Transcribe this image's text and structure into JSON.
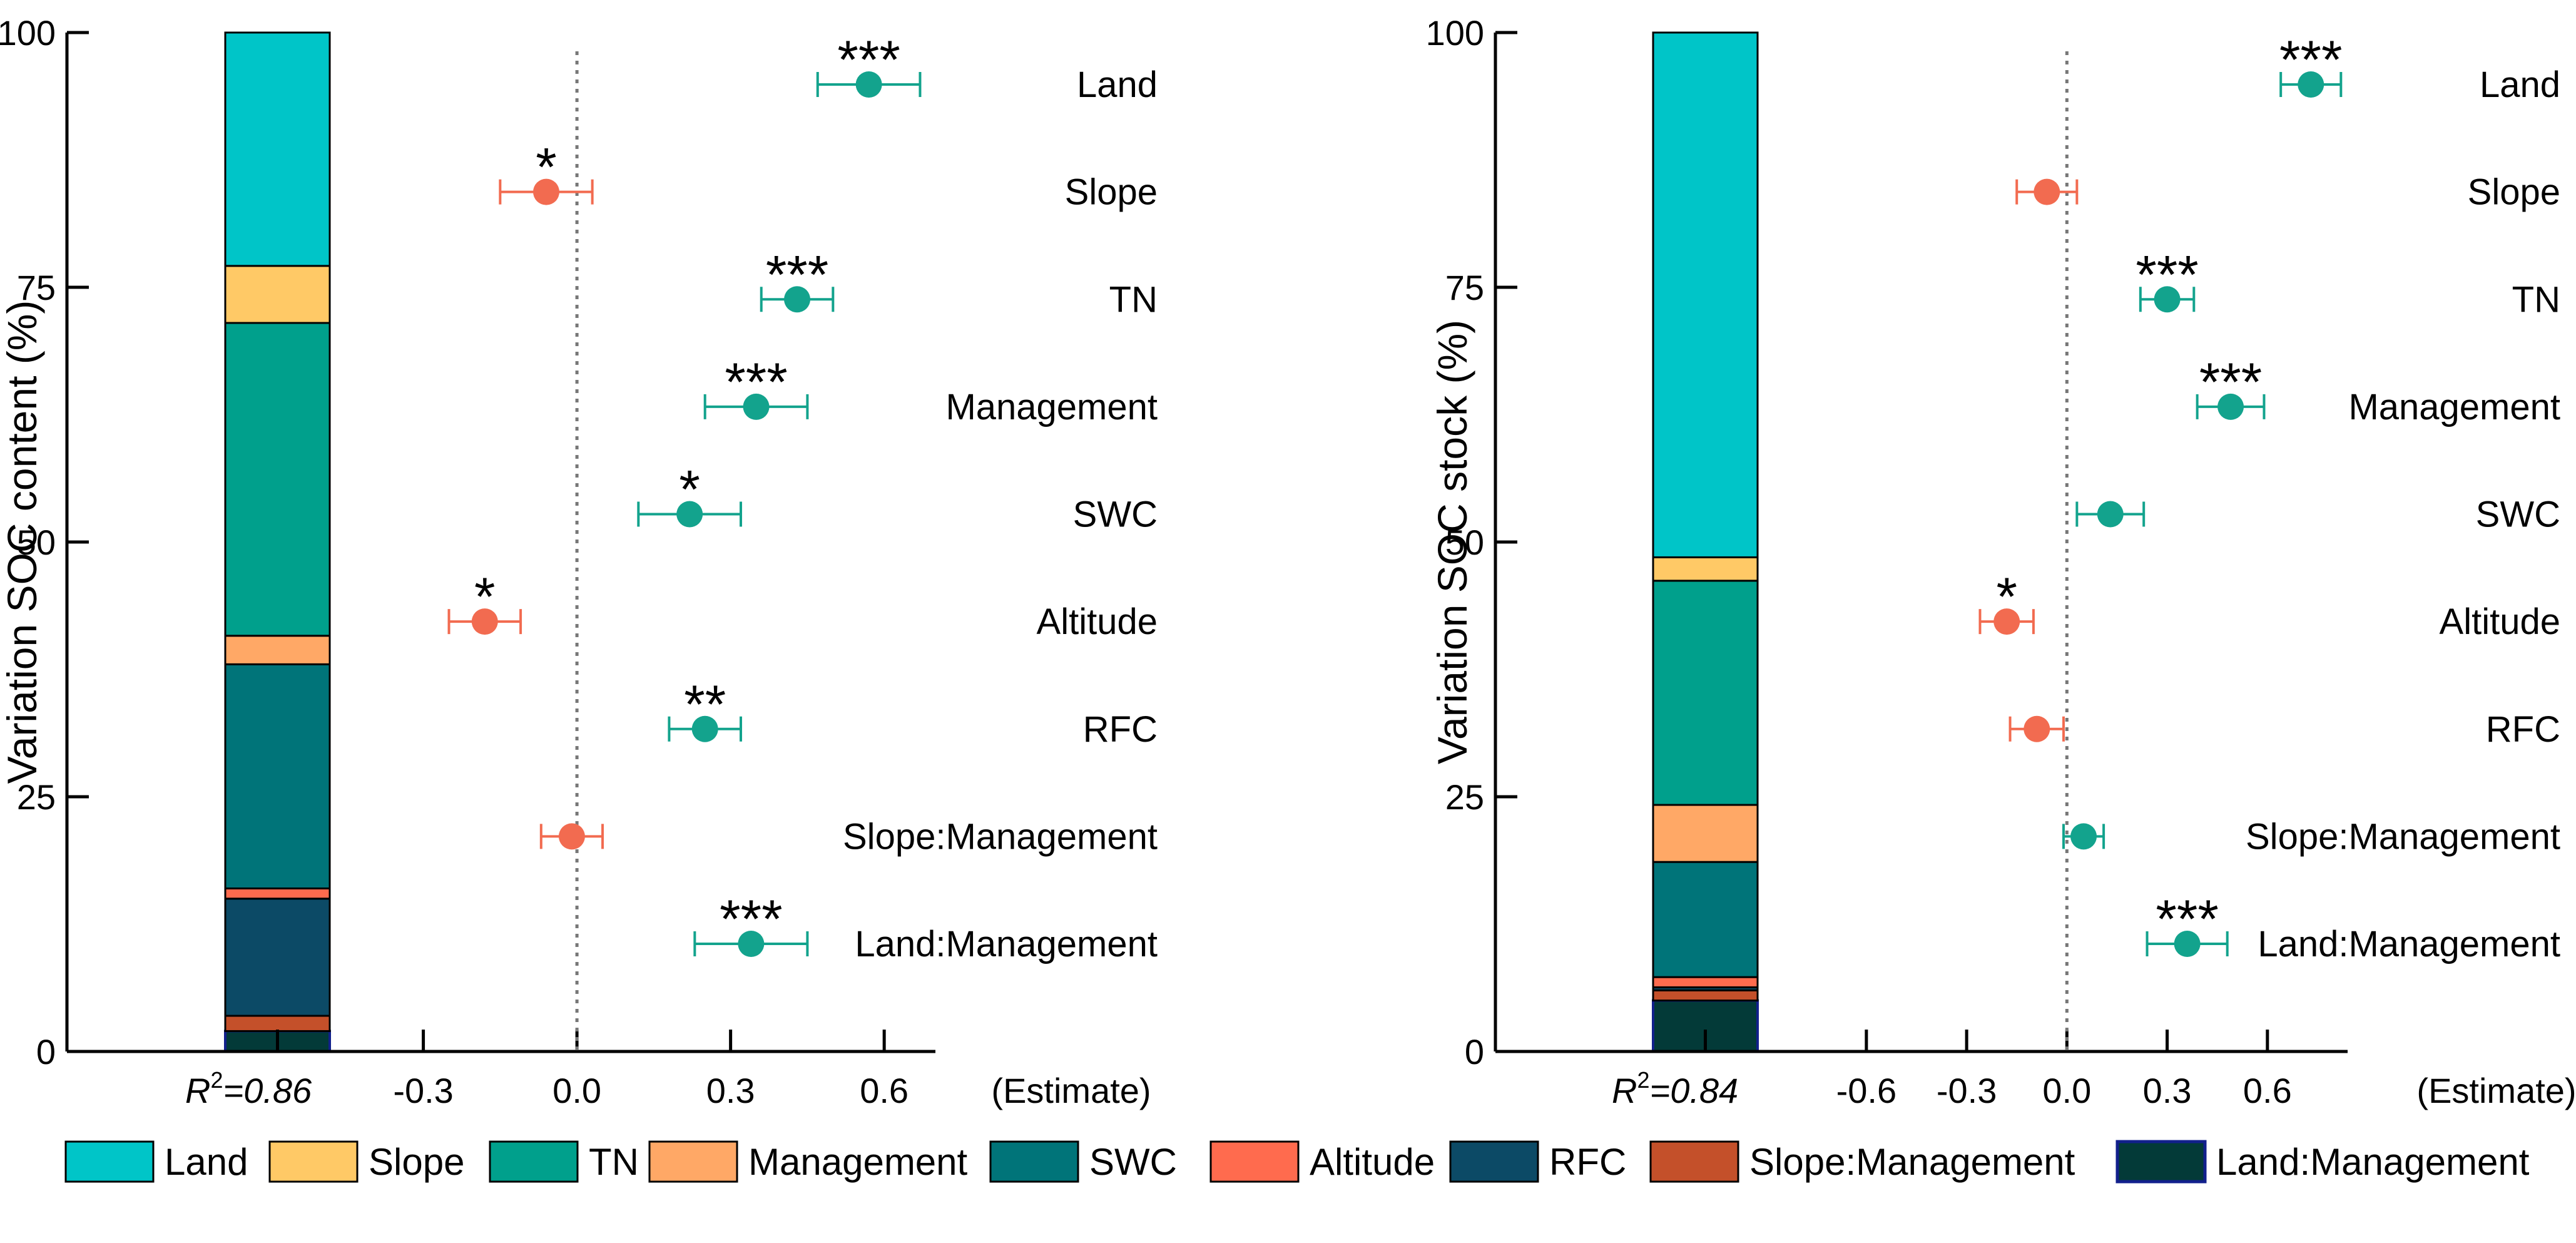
{
  "chart_data": [
    {
      "type": "stacked-bar-with-forest-plot",
      "ylabel": "Variation SOC content (%)",
      "yticks": [
        0,
        25,
        50,
        75,
        100
      ],
      "ylim": [
        0,
        100
      ],
      "r2_label": "=0.86",
      "xlabel": "(Estimate)",
      "xticks": [
        "-0.3",
        "0.0",
        "0.3",
        "0.6"
      ],
      "xtick_values": [
        -0.3,
        0.0,
        0.3,
        0.6
      ],
      "xlim": [
        -0.44,
        0.7
      ],
      "zero_line": 0.0,
      "stack": [
        {
          "name": "Land:Management",
          "value": 2.0
        },
        {
          "name": "Slope:Management",
          "value": 1.5
        },
        {
          "name": "RFC",
          "value": 11.5
        },
        {
          "name": "Altitude",
          "value": 1.0
        },
        {
          "name": "SWC",
          "value": 22.0
        },
        {
          "name": "Management",
          "value": 2.8
        },
        {
          "name": "TN",
          "value": 30.7
        },
        {
          "name": "Slope",
          "value": 5.6
        },
        {
          "name": "Land",
          "value": 22.9
        }
      ],
      "estimates": [
        {
          "label": "Land",
          "estimate": 0.57,
          "lo": 0.47,
          "hi": 0.67,
          "sig": "***",
          "direction": "positive"
        },
        {
          "label": "Slope",
          "estimate": -0.06,
          "lo": -0.15,
          "hi": 0.03,
          "sig": "*",
          "direction": "negative"
        },
        {
          "label": "TN",
          "estimate": 0.43,
          "lo": 0.36,
          "hi": 0.5,
          "sig": "***",
          "direction": "positive"
        },
        {
          "label": "Management",
          "estimate": 0.35,
          "lo": 0.25,
          "hi": 0.45,
          "sig": "***",
          "direction": "positive"
        },
        {
          "label": "SWC",
          "estimate": 0.22,
          "lo": 0.12,
          "hi": 0.32,
          "sig": "*",
          "direction": "positive"
        },
        {
          "label": "Altitude",
          "estimate": -0.18,
          "lo": -0.25,
          "hi": -0.11,
          "sig": "*",
          "direction": "negative"
        },
        {
          "label": "RFC",
          "estimate": 0.25,
          "lo": 0.18,
          "hi": 0.32,
          "sig": "**",
          "direction": "positive"
        },
        {
          "label": "Slope:Management",
          "estimate": -0.01,
          "lo": -0.07,
          "hi": 0.05,
          "sig": "",
          "direction": "negative"
        },
        {
          "label": "Land:Management",
          "estimate": 0.34,
          "lo": 0.23,
          "hi": 0.45,
          "sig": "***",
          "direction": "positive"
        }
      ]
    },
    {
      "type": "stacked-bar-with-forest-plot",
      "ylabel": "Variation SOC stock (%)",
      "yticks": [
        0,
        25,
        50,
        75,
        100
      ],
      "ylim": [
        0,
        100
      ],
      "r2_label": "=0.84",
      "xlabel": "(Estimate)",
      "xticks": [
        "-0.6",
        "-0.3",
        "0.0",
        "0.3",
        "0.6"
      ],
      "xtick_values": [
        -0.6,
        -0.3,
        0.0,
        0.3,
        0.6
      ],
      "xlim": [
        -0.86,
        0.84
      ],
      "zero_line": 0.0,
      "stack": [
        {
          "name": "Land:Management",
          "value": 5.0
        },
        {
          "name": "Slope:Management",
          "value": 1.0
        },
        {
          "name": "RFC",
          "value": 0.3
        },
        {
          "name": "Altitude",
          "value": 1.0
        },
        {
          "name": "SWC",
          "value": 11.3
        },
        {
          "name": "Management",
          "value": 5.6
        },
        {
          "name": "TN",
          "value": 22.0
        },
        {
          "name": "Slope",
          "value": 2.3
        },
        {
          "name": "Land",
          "value": 51.5
        }
      ],
      "estimates": [
        {
          "label": "Land",
          "estimate": 0.73,
          "lo": 0.64,
          "hi": 0.82,
          "sig": "***",
          "direction": "positive"
        },
        {
          "label": "Slope",
          "estimate": -0.06,
          "lo": -0.15,
          "hi": 0.03,
          "sig": "",
          "direction": "negative"
        },
        {
          "label": "TN",
          "estimate": 0.3,
          "lo": 0.22,
          "hi": 0.38,
          "sig": "***",
          "direction": "positive"
        },
        {
          "label": "Management",
          "estimate": 0.49,
          "lo": 0.39,
          "hi": 0.59,
          "sig": "***",
          "direction": "positive"
        },
        {
          "label": "SWC",
          "estimate": 0.13,
          "lo": 0.03,
          "hi": 0.23,
          "sig": "",
          "direction": "positive"
        },
        {
          "label": "Altitude",
          "estimate": -0.18,
          "lo": -0.26,
          "hi": -0.1,
          "sig": "*",
          "direction": "negative"
        },
        {
          "label": "RFC",
          "estimate": -0.09,
          "lo": -0.17,
          "hi": -0.01,
          "sig": "",
          "direction": "negative"
        },
        {
          "label": "Slope:Management",
          "estimate": 0.05,
          "lo": -0.01,
          "hi": 0.11,
          "sig": "",
          "direction": "positive"
        },
        {
          "label": "Land:Management",
          "estimate": 0.36,
          "lo": 0.24,
          "hi": 0.48,
          "sig": "***",
          "direction": "positive"
        }
      ]
    }
  ],
  "legend": [
    {
      "name": "Land",
      "color": "#00C5C8"
    },
    {
      "name": "Slope",
      "color": "#FFC966"
    },
    {
      "name": "TN",
      "color": "#00A08C"
    },
    {
      "name": "Management",
      "color": "#FFA866"
    },
    {
      "name": "SWC",
      "color": "#007479"
    },
    {
      "name": "Altitude",
      "color": "#FF6B4E"
    },
    {
      "name": "RFC",
      "color": "#0C4A66"
    },
    {
      "name": "Slope:Management",
      "color": "#C4502A"
    },
    {
      "name": "Land:Management",
      "color": "#033A38"
    }
  ],
  "r2_prefix": "R",
  "r2_sup": "2",
  "colors": {
    "positive": "#13A38D",
    "negative": "#F26B50",
    "axis": "#000000",
    "zero_line": "#777777",
    "land_management_border": "#12208C"
  }
}
